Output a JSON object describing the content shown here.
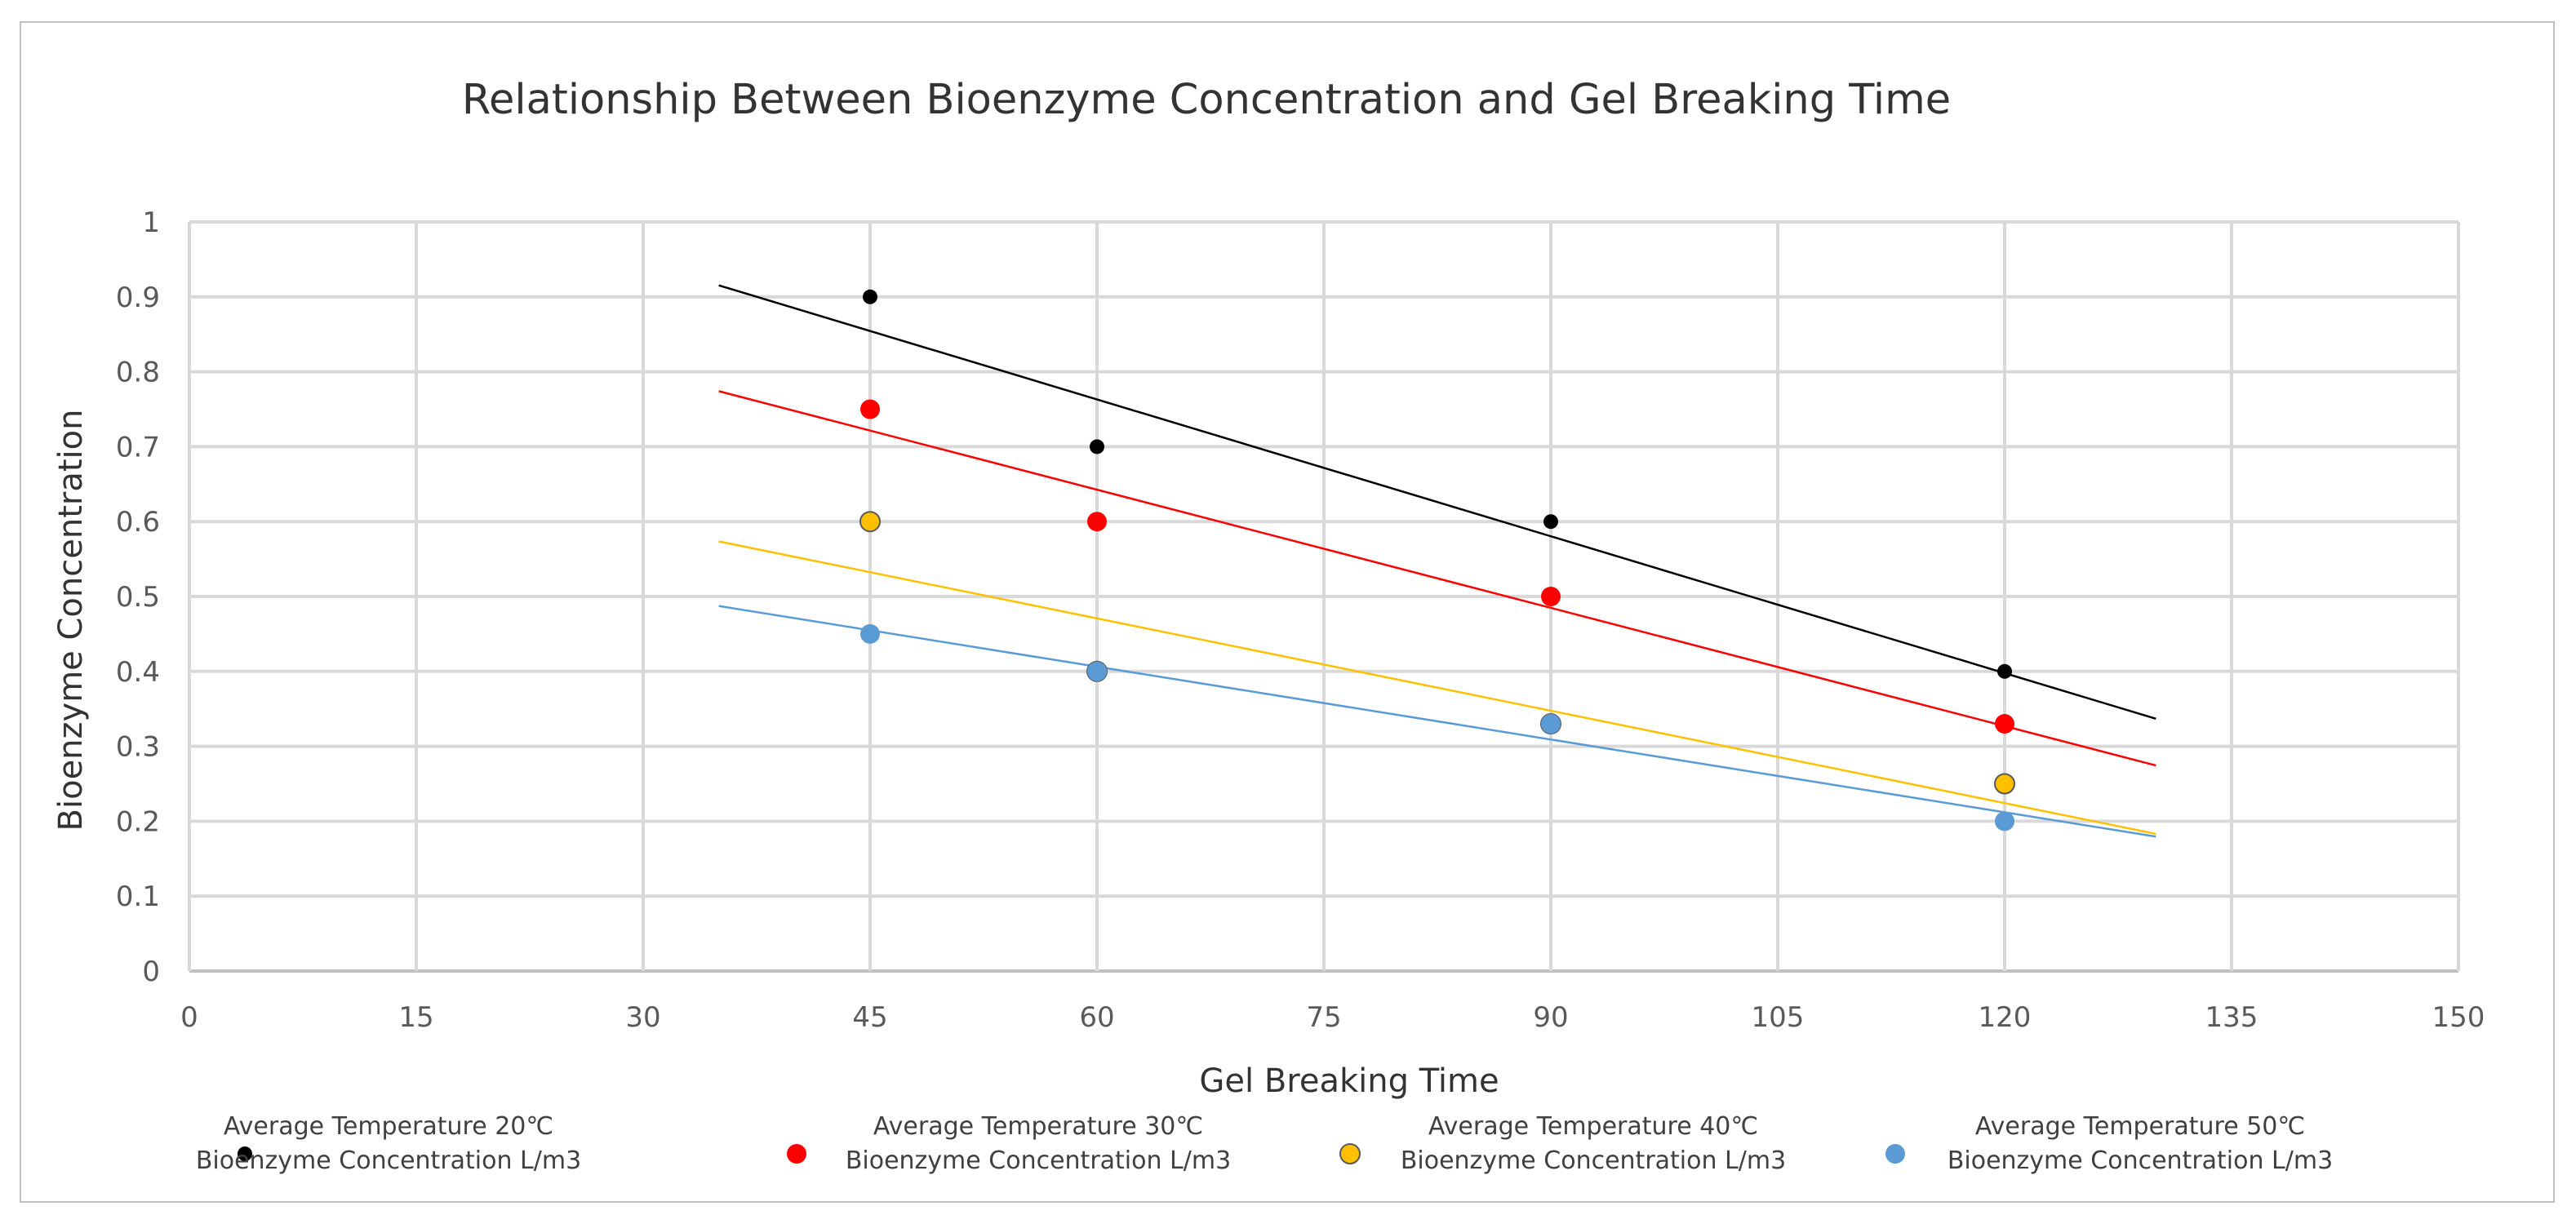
{
  "chart_data": {
    "type": "scatter",
    "title": "Relationship Between Bioenzyme Concentration and Gel Breaking Time",
    "xlabel": "Gel Breaking Time",
    "ylabel": "Bioenzyme Concentration",
    "xlim": [
      0,
      150
    ],
    "ylim": [
      0,
      1
    ],
    "x_ticks": [
      0,
      15,
      30,
      45,
      60,
      75,
      90,
      105,
      120,
      135,
      150
    ],
    "x_tick_labels": [
      "0",
      "15",
      "30",
      "45",
      "60",
      "75",
      "90",
      "105",
      "120",
      "135",
      "150"
    ],
    "y_ticks": [
      0,
      0.1,
      0.2,
      0.3,
      0.4,
      0.5,
      0.6,
      0.7,
      0.8,
      0.9,
      1
    ],
    "y_tick_labels": [
      "0",
      "0.1",
      "0.2",
      "0.3",
      "0.4",
      "0.5",
      "0.6",
      "0.7",
      "0.8",
      "0.9",
      "1"
    ],
    "grid": true,
    "legend_position": "bottom",
    "trendline_x_range": [
      35,
      130
    ],
    "series": [
      {
        "name_line1": "Average Temperature 20℃",
        "name_line2": "Bioenzyme Concentration L/m3",
        "color": "#000000",
        "marker": "small",
        "x": [
          45,
          60,
          90,
          120
        ],
        "y": [
          0.9,
          0.7,
          0.6,
          0.4
        ],
        "trendline": {
          "slope": -0.00609,
          "intercept": 1.1285
        }
      },
      {
        "name_line1": "Average Temperature 30℃",
        "name_line2": "Bioenzyme Concentration L/m3",
        "color": "#ff0000",
        "marker": "large",
        "x": [
          45,
          60,
          90,
          120
        ],
        "y": [
          0.75,
          0.6,
          0.5,
          0.33
        ],
        "trendline": {
          "slope": -0.00526,
          "intercept": 0.9582
        }
      },
      {
        "name_line1": "Average Temperature 40℃",
        "name_line2": "Bioenzyme Concentration L/m3",
        "color": "#ffc000",
        "marker": "large-outlined",
        "x": [
          45,
          60,
          90,
          120
        ],
        "y": [
          0.6,
          0.4,
          0.33,
          0.25
        ],
        "trendline": {
          "slope": -0.00411,
          "intercept": 0.7174
        }
      },
      {
        "name_line1": "Average Temperature 50℃",
        "name_line2": "Bioenzyme Concentration L/m3",
        "color": "#5b9bd5",
        "marker": "large",
        "x": [
          45,
          60,
          90,
          120
        ],
        "y": [
          0.45,
          0.4,
          0.33,
          0.2
        ],
        "trendline": {
          "slope": -0.00324,
          "intercept": 0.6007
        }
      }
    ]
  }
}
